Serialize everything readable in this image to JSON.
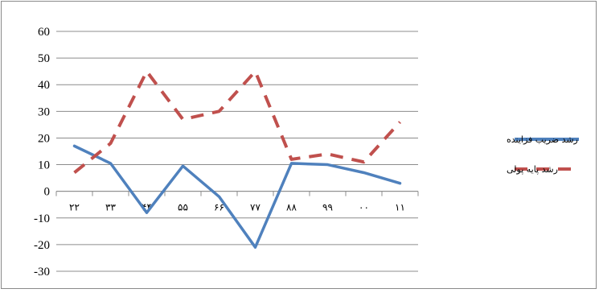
{
  "chart_data": {
    "type": "line",
    "categories": [
      "۲۲",
      "۳۳",
      "۴۴",
      "۵۵",
      "۶۶",
      "۷۷",
      "۸۸",
      "۹۹",
      "۰۰",
      "۱۱"
    ],
    "series": [
      {
        "name": "رشد ضریب فزاینده",
        "values": [
          17,
          10.5,
          -8,
          9.5,
          -2,
          -21,
          10.5,
          10,
          7,
          3
        ],
        "color": "#4f81bd",
        "dash": "solid"
      },
      {
        "name": "رشد پایه پولی",
        "values": [
          7,
          18,
          45,
          27,
          30,
          45,
          12,
          14,
          11,
          26
        ],
        "color": "#c0504d",
        "dash": "dashed"
      }
    ],
    "yticks": [
      60,
      50,
      40,
      30,
      20,
      10,
      0,
      -10,
      -20,
      -30
    ],
    "ylim": [
      -30,
      60
    ],
    "grid": true,
    "legend": "right",
    "title": "",
    "xlabel": "",
    "ylabel": ""
  }
}
